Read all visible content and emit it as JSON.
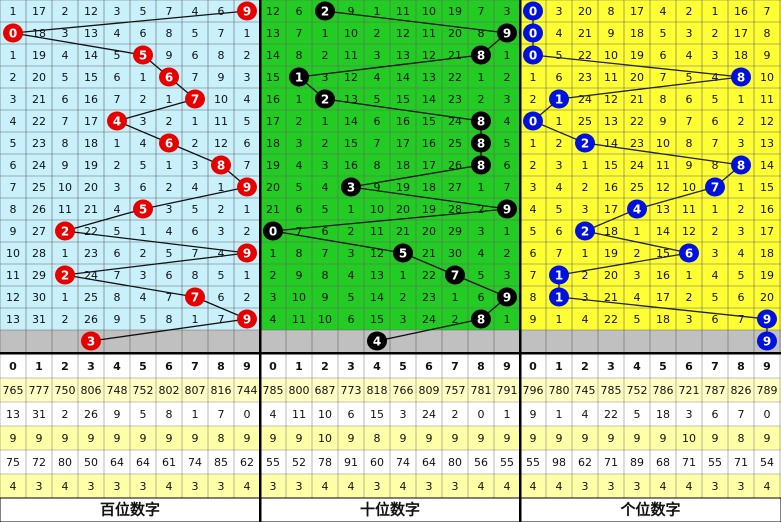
{
  "panels": [
    {
      "title": "百位数字",
      "columns": [
        0,
        1,
        2,
        3,
        4,
        5,
        6,
        7,
        8,
        9
      ],
      "draws": [
        9,
        0,
        5,
        6,
        7,
        4,
        6,
        8,
        9,
        5,
        2,
        9,
        2,
        7,
        9
      ],
      "forecast": 3,
      "rows": [
        [
          1,
          17,
          2,
          12,
          3,
          5,
          7,
          4,
          6,
          null
        ],
        [
          null,
          18,
          3,
          13,
          4,
          6,
          8,
          5,
          7,
          1
        ],
        [
          1,
          19,
          4,
          14,
          5,
          null,
          9,
          6,
          8,
          2
        ],
        [
          2,
          20,
          5,
          15,
          6,
          1,
          null,
          7,
          9,
          3
        ],
        [
          3,
          21,
          6,
          16,
          7,
          2,
          1,
          null,
          10,
          4
        ],
        [
          4,
          22,
          7,
          17,
          null,
          3,
          2,
          1,
          11,
          5
        ],
        [
          5,
          23,
          8,
          18,
          1,
          4,
          null,
          2,
          12,
          6
        ],
        [
          6,
          24,
          9,
          19,
          2,
          5,
          1,
          3,
          null,
          7
        ],
        [
          7,
          25,
          10,
          20,
          3,
          6,
          2,
          4,
          1,
          null
        ],
        [
          8,
          26,
          11,
          21,
          4,
          null,
          3,
          5,
          2,
          1
        ],
        [
          9,
          27,
          null,
          22,
          5,
          1,
          4,
          6,
          3,
          2
        ],
        [
          10,
          28,
          1,
          23,
          6,
          2,
          5,
          7,
          4,
          null
        ],
        [
          11,
          29,
          null,
          24,
          7,
          3,
          6,
          8,
          5,
          1
        ],
        [
          12,
          30,
          1,
          25,
          8,
          4,
          7,
          null,
          6,
          2
        ],
        [
          13,
          31,
          2,
          26,
          9,
          5,
          8,
          1,
          7,
          null
        ]
      ],
      "stats": [
        [
          765,
          777,
          750,
          806,
          748,
          752,
          802,
          807,
          816,
          744
        ],
        [
          13,
          31,
          2,
          26,
          9,
          5,
          8,
          1,
          7,
          0
        ],
        [
          9,
          9,
          9,
          9,
          9,
          9,
          9,
          9,
          8,
          9
        ],
        [
          75,
          72,
          80,
          50,
          64,
          64,
          61,
          74,
          85,
          62
        ],
        [
          4,
          3,
          4,
          3,
          3,
          3,
          4,
          3,
          3,
          4
        ]
      ]
    },
    {
      "title": "十位数字",
      "columns": [
        0,
        1,
        2,
        3,
        4,
        5,
        6,
        7,
        8,
        9
      ],
      "draws": [
        2,
        9,
        8,
        1,
        2,
        8,
        8,
        8,
        3,
        9,
        0,
        5,
        7,
        9,
        8
      ],
      "forecast": 4,
      "rows": [
        [
          12,
          6,
          null,
          9,
          1,
          11,
          10,
          19,
          7,
          3
        ],
        [
          13,
          7,
          1,
          10,
          2,
          12,
          11,
          20,
          8,
          null
        ],
        [
          14,
          8,
          2,
          11,
          3,
          13,
          12,
          21,
          null,
          1
        ],
        [
          15,
          null,
          3,
          12,
          4,
          14,
          13,
          22,
          1,
          2
        ],
        [
          16,
          1,
          null,
          13,
          5,
          15,
          14,
          23,
          2,
          3
        ],
        [
          17,
          2,
          1,
          14,
          6,
          16,
          15,
          24,
          null,
          4
        ],
        [
          18,
          3,
          2,
          15,
          7,
          17,
          16,
          25,
          null,
          5
        ],
        [
          19,
          4,
          3,
          16,
          8,
          18,
          17,
          26,
          null,
          6
        ],
        [
          20,
          5,
          4,
          null,
          9,
          19,
          18,
          27,
          1,
          7
        ],
        [
          21,
          6,
          5,
          1,
          10,
          20,
          19,
          28,
          2,
          null
        ],
        [
          null,
          7,
          6,
          2,
          11,
          21,
          20,
          29,
          3,
          1
        ],
        [
          1,
          8,
          7,
          3,
          12,
          null,
          21,
          30,
          4,
          2
        ],
        [
          2,
          9,
          8,
          4,
          13,
          1,
          22,
          null,
          5,
          3
        ],
        [
          3,
          10,
          9,
          5,
          14,
          2,
          23,
          1,
          6,
          null
        ],
        [
          4,
          11,
          10,
          6,
          15,
          3,
          24,
          2,
          null,
          1
        ]
      ],
      "stats": [
        [
          785,
          800,
          687,
          773,
          818,
          766,
          809,
          757,
          781,
          791
        ],
        [
          4,
          11,
          10,
          6,
          15,
          3,
          24,
          2,
          0,
          1
        ],
        [
          9,
          9,
          10,
          9,
          8,
          9,
          9,
          9,
          9,
          9
        ],
        [
          55,
          52,
          78,
          91,
          60,
          74,
          64,
          80,
          56,
          55
        ],
        [
          3,
          3,
          4,
          4,
          3,
          4,
          3,
          3,
          4,
          4
        ]
      ]
    },
    {
      "title": "个位数字",
      "columns": [
        0,
        1,
        2,
        3,
        4,
        5,
        6,
        7,
        8,
        9
      ],
      "draws": [
        0,
        0,
        0,
        8,
        1,
        0,
        2,
        8,
        7,
        4,
        2,
        6,
        1,
        1,
        9
      ],
      "forecast": 9,
      "rows": [
        [
          null,
          3,
          20,
          8,
          17,
          4,
          2,
          1,
          16,
          7
        ],
        [
          null,
          4,
          21,
          9,
          18,
          5,
          3,
          2,
          17,
          8
        ],
        [
          null,
          5,
          22,
          10,
          19,
          6,
          4,
          3,
          18,
          9
        ],
        [
          1,
          6,
          23,
          11,
          20,
          7,
          5,
          4,
          null,
          10
        ],
        [
          2,
          null,
          24,
          12,
          21,
          8,
          6,
          5,
          1,
          11
        ],
        [
          null,
          1,
          25,
          13,
          22,
          9,
          7,
          6,
          2,
          12
        ],
        [
          1,
          2,
          null,
          14,
          23,
          10,
          8,
          7,
          3,
          13
        ],
        [
          2,
          3,
          1,
          15,
          24,
          11,
          9,
          8,
          null,
          14
        ],
        [
          3,
          4,
          2,
          16,
          25,
          12,
          10,
          null,
          1,
          15
        ],
        [
          4,
          5,
          3,
          17,
          null,
          13,
          11,
          1,
          2,
          16
        ],
        [
          5,
          6,
          null,
          18,
          1,
          14,
          12,
          2,
          3,
          17
        ],
        [
          6,
          7,
          1,
          19,
          2,
          15,
          null,
          3,
          4,
          18
        ],
        [
          7,
          null,
          2,
          20,
          3,
          16,
          1,
          4,
          5,
          19
        ],
        [
          8,
          null,
          3,
          21,
          4,
          17,
          2,
          5,
          6,
          20
        ],
        [
          9,
          1,
          4,
          22,
          5,
          18,
          3,
          6,
          7,
          null
        ]
      ],
      "stats": [
        [
          796,
          780,
          745,
          785,
          752,
          786,
          721,
          787,
          826,
          789
        ],
        [
          9,
          1,
          4,
          22,
          5,
          18,
          3,
          6,
          7,
          0
        ],
        [
          9,
          9,
          9,
          9,
          9,
          9,
          10,
          9,
          8,
          9
        ],
        [
          55,
          98,
          62,
          71,
          89,
          68,
          71,
          55,
          71,
          54
        ],
        [
          4,
          4,
          3,
          3,
          3,
          4,
          4,
          3,
          3,
          4
        ]
      ]
    }
  ]
}
